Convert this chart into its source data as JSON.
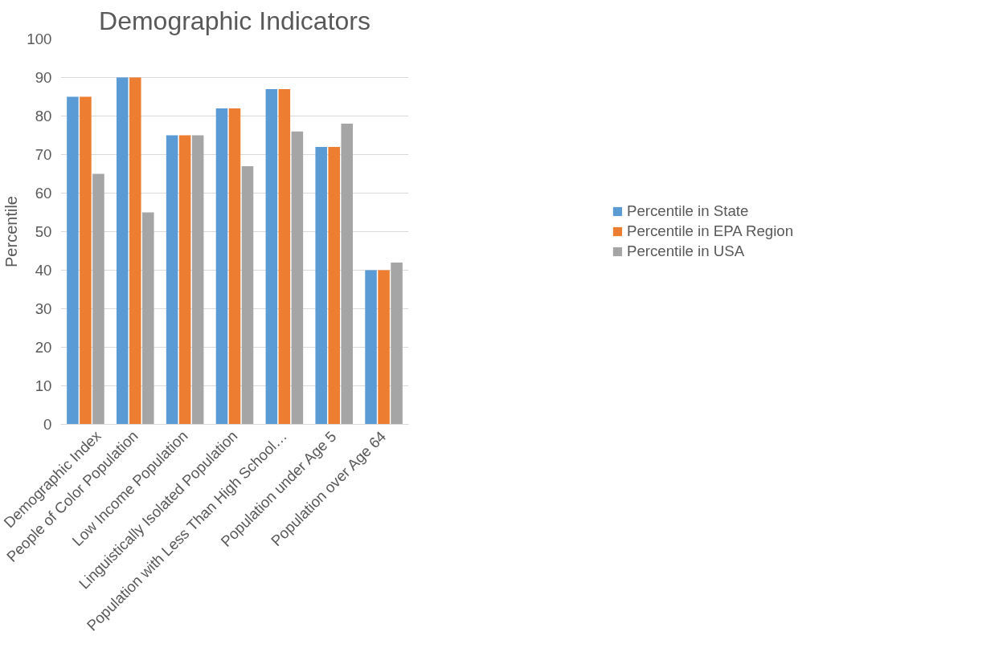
{
  "chart_data": {
    "type": "bar",
    "title": "Demographic Indicators",
    "ylabel": "Percentile",
    "categories": [
      "Demographic Index",
      "People of Color Population",
      "Low Income Population",
      "Linguistically Isolated Population",
      "Population with Less Than High School…",
      "Population under Age 5",
      "Population over Age 64"
    ],
    "series": [
      {
        "name": "Percentile in State",
        "color": "#5b9bd5",
        "values": [
          85,
          90,
          75,
          82,
          87,
          72,
          40
        ]
      },
      {
        "name": "Percentile in EPA Region",
        "color": "#ed7d31",
        "values": [
          85,
          90,
          75,
          82,
          87,
          72,
          40
        ]
      },
      {
        "name": "Percentile in USA",
        "color": "#a5a5a5",
        "values": [
          65,
          55,
          75,
          67,
          76,
          78,
          42
        ]
      }
    ],
    "ylim": [
      0,
      100
    ],
    "yticks": [
      0,
      10,
      20,
      30,
      40,
      50,
      60,
      70,
      80,
      90,
      100
    ],
    "grid": "y",
    "legend": "right"
  }
}
